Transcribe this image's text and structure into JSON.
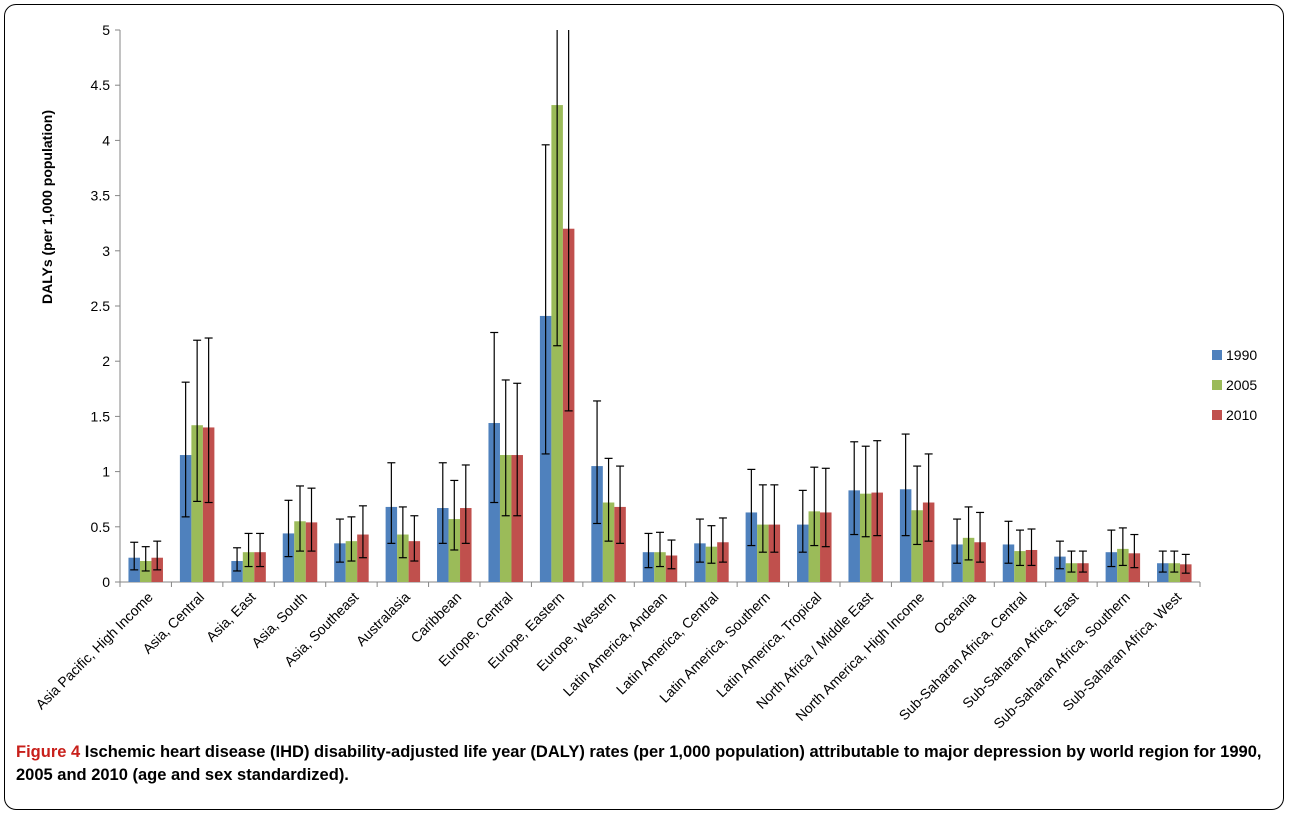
{
  "chart_data": {
    "type": "bar",
    "ylabel": "DALYs (per 1,000 population)",
    "ylim": [
      0,
      5
    ],
    "yticks": [
      "0",
      "0.5",
      "1",
      "1.5",
      "2",
      "2.5",
      "3",
      "3.5",
      "4",
      "4.5",
      "5"
    ],
    "grid": false,
    "legend_position": "right",
    "categories": [
      "Asia Pacific, High Income",
      "Asia, Central",
      "Asia, East",
      "Asia, South",
      "Asia, Southeast",
      "Australasia",
      "Caribbean",
      "Europe, Central",
      "Europe, Eastern",
      "Europe, Western",
      "Latin America, Andean",
      "Latin America, Central",
      "Latin America, Southern",
      "Latin America, Tropical",
      "North Africa / Middle East",
      "North America, High Income",
      "Oceania",
      "Sub-Saharan Africa, Central",
      "Sub-Saharan Africa, East",
      "Sub-Saharan Africa, Southern",
      "Sub-Saharan Africa, West"
    ],
    "series": [
      {
        "name": "1990",
        "color": "#4f81bd",
        "values": [
          0.22,
          1.15,
          0.19,
          0.44,
          0.35,
          0.68,
          0.67,
          1.44,
          2.41,
          1.05,
          0.27,
          0.35,
          0.63,
          0.52,
          0.83,
          0.84,
          0.34,
          0.34,
          0.23,
          0.27,
          0.17
        ],
        "lower": [
          0.11,
          0.59,
          0.1,
          0.23,
          0.18,
          0.35,
          0.35,
          0.72,
          1.16,
          0.53,
          0.13,
          0.18,
          0.33,
          0.27,
          0.43,
          0.42,
          0.17,
          0.17,
          0.12,
          0.14,
          0.09
        ],
        "upper": [
          0.36,
          1.81,
          0.31,
          0.74,
          0.57,
          1.08,
          1.08,
          2.26,
          3.96,
          1.64,
          0.44,
          0.57,
          1.02,
          0.83,
          1.27,
          1.34,
          0.57,
          0.55,
          0.37,
          0.47,
          0.28
        ]
      },
      {
        "name": "2005",
        "color": "#9bbb59",
        "values": [
          0.19,
          1.42,
          0.27,
          0.55,
          0.37,
          0.43,
          0.57,
          1.15,
          4.32,
          0.72,
          0.27,
          0.32,
          0.52,
          0.64,
          0.8,
          0.65,
          0.4,
          0.28,
          0.17,
          0.3,
          0.17
        ],
        "lower": [
          0.1,
          0.73,
          0.14,
          0.28,
          0.19,
          0.22,
          0.29,
          0.6,
          2.14,
          0.37,
          0.14,
          0.17,
          0.27,
          0.33,
          0.41,
          0.34,
          0.2,
          0.15,
          0.09,
          0.15,
          0.09
        ],
        "upper": [
          0.32,
          2.19,
          0.44,
          0.87,
          0.59,
          0.68,
          0.92,
          1.83,
          5.0,
          1.12,
          0.45,
          0.51,
          0.88,
          1.04,
          1.23,
          1.05,
          0.68,
          0.47,
          0.28,
          0.49,
          0.28
        ]
      },
      {
        "name": "2010",
        "color": "#c0504d",
        "values": [
          0.22,
          1.4,
          0.27,
          0.54,
          0.43,
          0.37,
          0.67,
          1.15,
          3.2,
          0.68,
          0.24,
          0.36,
          0.52,
          0.63,
          0.81,
          0.72,
          0.36,
          0.29,
          0.17,
          0.26,
          0.16
        ],
        "lower": [
          0.11,
          0.72,
          0.14,
          0.28,
          0.22,
          0.19,
          0.35,
          0.6,
          1.55,
          0.35,
          0.12,
          0.18,
          0.27,
          0.32,
          0.42,
          0.37,
          0.18,
          0.15,
          0.09,
          0.13,
          0.08
        ],
        "upper": [
          0.37,
          2.21,
          0.44,
          0.85,
          0.69,
          0.6,
          1.06,
          1.8,
          5.0,
          1.05,
          0.38,
          0.58,
          0.88,
          1.03,
          1.28,
          1.16,
          0.63,
          0.48,
          0.28,
          0.43,
          0.25
        ]
      }
    ]
  },
  "caption": {
    "label": "Figure 4",
    "text": " Ischemic heart disease (IHD) disability-adjusted life year (DALY) rates (per 1,000 population) attributable to major depression by world region for 1990, 2005 and 2010 (age and sex standardized)."
  }
}
